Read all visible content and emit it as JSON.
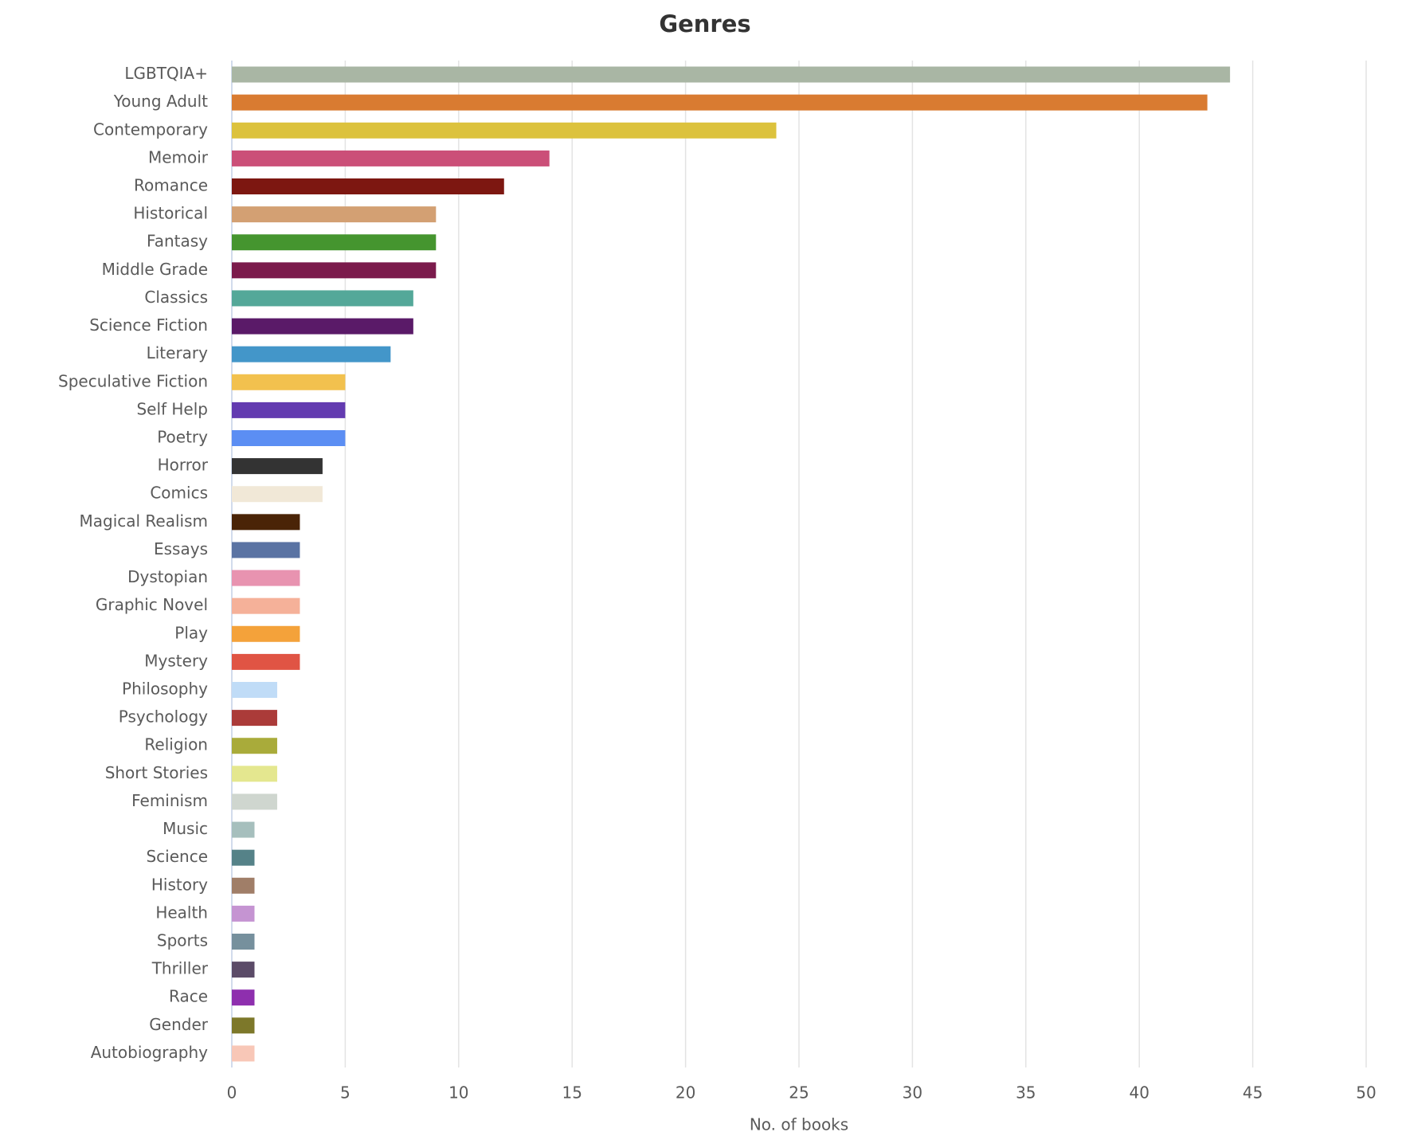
{
  "chart_data": {
    "type": "hbar",
    "title": "Genres",
    "x_label": "No. of books",
    "categories": [
      "LGBTQIA+",
      "Young Adult",
      "Contemporary",
      "Memoir",
      "Romance",
      "Historical",
      "Fantasy",
      "Middle Grade",
      "Classics",
      "Science Fiction",
      "Literary",
      "Speculative Fiction",
      "Self Help",
      "Poetry",
      "Horror",
      "Comics",
      "Magical Realism",
      "Essays",
      "Dystopian",
      "Graphic Novel",
      "Play",
      "Mystery",
      "Philosophy",
      "Psychology",
      "Religion",
      "Short Stories",
      "Feminism",
      "Music",
      "Science",
      "History",
      "Health",
      "Sports",
      "Thriller",
      "Race",
      "Gender",
      "Autobiography"
    ],
    "values": [
      44,
      43,
      24,
      14,
      12,
      9,
      9,
      9,
      8,
      8,
      7,
      5,
      5,
      5,
      4,
      4,
      3,
      3,
      3,
      3,
      3,
      3,
      2,
      2,
      2,
      2,
      2,
      1,
      1,
      1,
      1,
      1,
      1,
      1,
      1,
      1
    ],
    "colors": [
      "#a9b6a4",
      "#d97b31",
      "#dcc23d",
      "#cb4f78",
      "#7d1711",
      "#d3a073",
      "#45952f",
      "#7b1b4c",
      "#54a899",
      "#5a1a68",
      "#4396c9",
      "#f2c14e",
      "#633bb0",
      "#5b8ef3",
      "#333333",
      "#f1e8d7",
      "#4a2407",
      "#5a73a3",
      "#e893b0",
      "#f5b199",
      "#f4a23a",
      "#e05444",
      "#c0dcf7",
      "#ab3b39",
      "#a9ab3a",
      "#e4e78f",
      "#cfd6cf",
      "#a6bfbd",
      "#558288",
      "#a07e68",
      "#c594d2",
      "#76909d",
      "#5b4b68",
      "#8e2fae",
      "#7d782a",
      "#f8c7b7"
    ],
    "xlim": [
      0,
      50
    ],
    "xticks": [
      0,
      5,
      10,
      15,
      20,
      25,
      30,
      35,
      40,
      45,
      50
    ],
    "grid": true
  }
}
